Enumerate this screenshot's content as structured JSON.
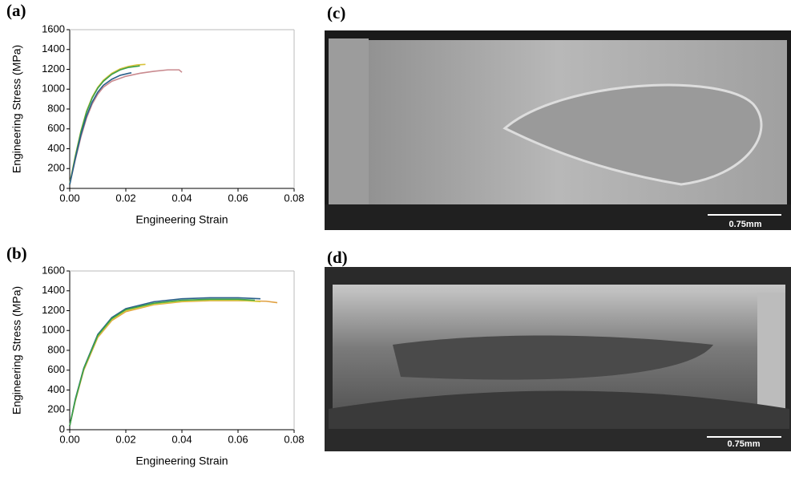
{
  "chart_data": [
    {
      "type": "line",
      "label": "(a)",
      "x_label": "Engineering Strain",
      "y_label": "Engineering Stress (MPa)",
      "xlim": [
        0,
        0.08
      ],
      "ylim": [
        0,
        1600
      ],
      "xticks": [
        {
          "value": 0,
          "label": "0.00"
        },
        {
          "value": 0.02,
          "label": "0.02"
        },
        {
          "value": 0.04,
          "label": "0.04"
        },
        {
          "value": 0.06,
          "label": "0.06"
        },
        {
          "value": 0.08,
          "label": "0.08"
        }
      ],
      "yticks": [
        0,
        200,
        400,
        600,
        800,
        1000,
        1200,
        1400,
        1600
      ],
      "series": [
        {
          "color": "#c98a8f",
          "x": [
            0,
            0.002,
            0.004,
            0.006,
            0.008,
            0.01,
            0.012,
            0.015,
            0.02,
            0.025,
            0.03,
            0.035,
            0.039,
            0.04
          ],
          "values": [
            40,
            290,
            520,
            710,
            850,
            950,
            1020,
            1080,
            1130,
            1160,
            1180,
            1195,
            1195,
            1170
          ]
        },
        {
          "color": "#d8c23a",
          "x": [
            0,
            0.002,
            0.004,
            0.006,
            0.008,
            0.01,
            0.012,
            0.015,
            0.018,
            0.021,
            0.024,
            0.027
          ],
          "values": [
            50,
            330,
            580,
            780,
            920,
            1020,
            1090,
            1160,
            1205,
            1230,
            1245,
            1250
          ]
        },
        {
          "color": "#3aa04a",
          "x": [
            0,
            0.002,
            0.004,
            0.006,
            0.008,
            0.01,
            0.012,
            0.015,
            0.018,
            0.021,
            0.025
          ],
          "values": [
            40,
            320,
            570,
            770,
            910,
            1010,
            1080,
            1150,
            1195,
            1220,
            1235
          ]
        },
        {
          "color": "#2b5f8a",
          "x": [
            0,
            0.002,
            0.004,
            0.006,
            0.008,
            0.01,
            0.012,
            0.015,
            0.018,
            0.021,
            0.022
          ],
          "values": [
            40,
            300,
            540,
            730,
            870,
            970,
            1040,
            1100,
            1140,
            1160,
            1165
          ]
        }
      ]
    },
    {
      "type": "line",
      "label": "(b)",
      "x_label": "Engineering Strain",
      "y_label": "Engineering Stress (MPa)",
      "xlim": [
        0,
        0.08
      ],
      "ylim": [
        0,
        1600
      ],
      "xticks": [
        {
          "value": 0,
          "label": "0.00"
        },
        {
          "value": 0.02,
          "label": "0.02"
        },
        {
          "value": 0.04,
          "label": "0.04"
        },
        {
          "value": 0.06,
          "label": "0.06"
        },
        {
          "value": 0.08,
          "label": "0.08"
        }
      ],
      "yticks": [
        0,
        200,
        400,
        600,
        800,
        1000,
        1200,
        1400,
        1600
      ],
      "series": [
        {
          "color": "#e0a040",
          "x": [
            0,
            0.002,
            0.005,
            0.01,
            0.015,
            0.02,
            0.03,
            0.04,
            0.05,
            0.06,
            0.07,
            0.074
          ],
          "values": [
            40,
            290,
            600,
            930,
            1100,
            1190,
            1260,
            1290,
            1300,
            1300,
            1295,
            1280
          ]
        },
        {
          "color": "#d8d040",
          "x": [
            0,
            0.002,
            0.005,
            0.01,
            0.015,
            0.02,
            0.03,
            0.04,
            0.05,
            0.06,
            0.068
          ],
          "values": [
            40,
            300,
            610,
            940,
            1110,
            1200,
            1265,
            1295,
            1305,
            1305,
            1290
          ]
        },
        {
          "color": "#2b5f8a",
          "x": [
            0,
            0.002,
            0.005,
            0.01,
            0.015,
            0.02,
            0.03,
            0.04,
            0.05,
            0.06,
            0.068
          ],
          "values": [
            40,
            310,
            620,
            960,
            1130,
            1220,
            1290,
            1320,
            1330,
            1330,
            1320
          ]
        },
        {
          "color": "#3aa04a",
          "x": [
            0,
            0.002,
            0.005,
            0.01,
            0.015,
            0.02,
            0.03,
            0.04,
            0.05,
            0.06,
            0.066
          ],
          "values": [
            40,
            300,
            615,
            950,
            1120,
            1210,
            1275,
            1305,
            1315,
            1315,
            1305
          ]
        }
      ]
    }
  ],
  "images": [
    {
      "label": "(c)",
      "scale_bar": "0.75mm"
    },
    {
      "label": "(d)",
      "scale_bar": "0.75mm"
    }
  ]
}
